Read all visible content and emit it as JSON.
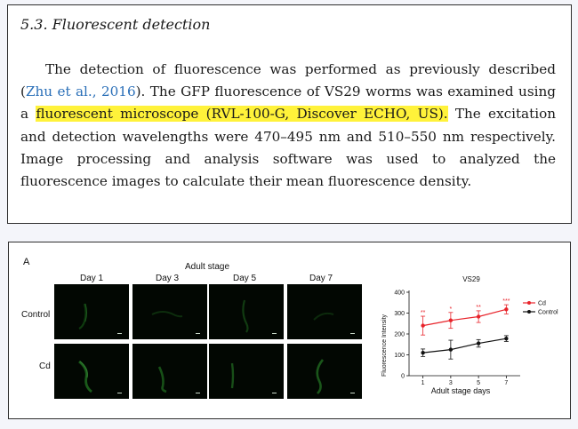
{
  "section": {
    "title": "5.3.  Fluorescent detection"
  },
  "paragraph": {
    "part1": "The detection of fluorescence was performed as previously described (",
    "citation": "Zhu et al., 2016",
    "part2": "). The GFP fluorescence of VS29 worms was examined using a ",
    "highlight": "fluorescent microscope (RVL-100-G, Discover ECHO, US).",
    "part3": " The excitation and detection wavelengths were 470–495 nm and 510–550 nm respectively. Image processing and analysis software was used to analyzed the fluorescence images to calculate their mean fluo­rescence density."
  },
  "colors": {
    "citation": "#2a6fb8",
    "highlight": "#fff23a",
    "cd_series": "#e8232a",
    "control_series": "#111111"
  },
  "figure": {
    "panel_label": "A",
    "group_title": "Adult stage",
    "columns": [
      "Day 1",
      "Day 3",
      "Day 5",
      "Day 7"
    ],
    "rows": [
      "Control",
      "Cd"
    ]
  },
  "chart_data": {
    "type": "line",
    "title": "VS29",
    "xlabel": "Adult stage days",
    "ylabel": "Fluorescence Intensity",
    "x": [
      1,
      3,
      5,
      7
    ],
    "xlim": [
      0,
      8
    ],
    "ylim": [
      0,
      400
    ],
    "yticks": [
      0,
      100,
      200,
      300,
      400
    ],
    "legend_position": "top-right",
    "series": [
      {
        "name": "Cd",
        "values": [
          240,
          265,
          283,
          318
        ],
        "errors": [
          45,
          38,
          28,
          22
        ],
        "significance": [
          "**",
          "*",
          "**",
          "***"
        ]
      },
      {
        "name": "Control",
        "values": [
          110,
          125,
          155,
          178
        ],
        "errors": [
          18,
          45,
          18,
          14
        ],
        "significance": [
          "",
          "",
          "",
          ""
        ]
      }
    ]
  }
}
